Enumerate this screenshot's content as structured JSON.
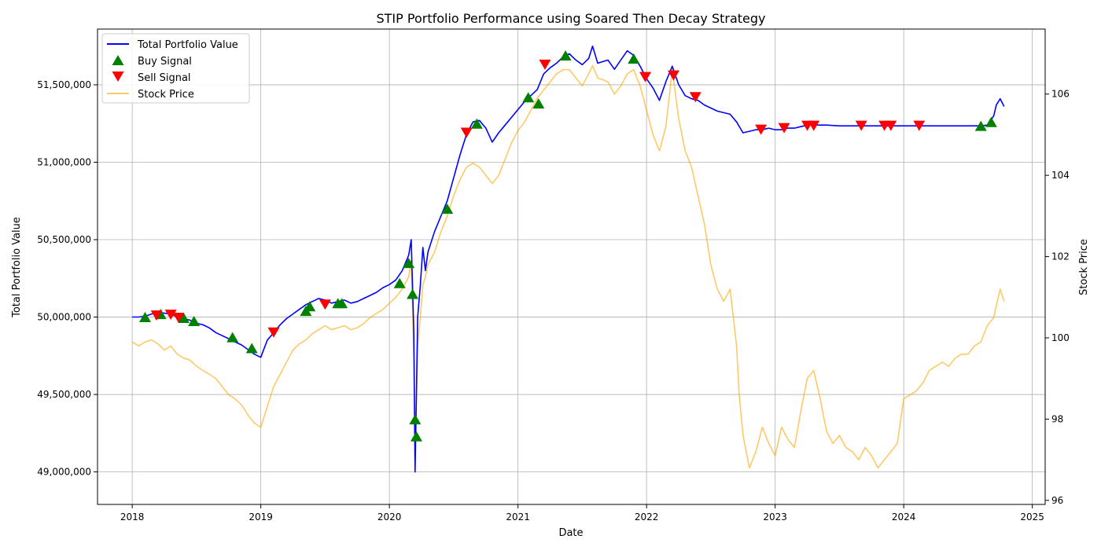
{
  "chart_data": {
    "type": "line",
    "title": "STIP Portfolio Performance using Soared Then Decay Strategy",
    "xlabel": "Date",
    "ylabel_left": "Total Portfolio Value",
    "ylabel_right": "Stock Price",
    "xlim": [
      2017.73,
      2025.1
    ],
    "ylim_left": [
      48790000,
      51860000
    ],
    "ylim_right": [
      95.9,
      107.6
    ],
    "x_ticks": [
      {
        "value": 2018,
        "label": "2018"
      },
      {
        "value": 2019,
        "label": "2019"
      },
      {
        "value": 2020,
        "label": "2020"
      },
      {
        "value": 2021,
        "label": "2021"
      },
      {
        "value": 2022,
        "label": "2022"
      },
      {
        "value": 2023,
        "label": "2023"
      },
      {
        "value": 2024,
        "label": "2024"
      },
      {
        "value": 2025,
        "label": "2025"
      }
    ],
    "y_ticks_left": [
      {
        "value": 49000000,
        "label": "49,000,000"
      },
      {
        "value": 49500000,
        "label": "49,500,000"
      },
      {
        "value": 50000000,
        "label": "50,000,000"
      },
      {
        "value": 50500000,
        "label": "50,500,000"
      },
      {
        "value": 51000000,
        "label": "51,000,000"
      },
      {
        "value": 51500000,
        "label": "51,500,000"
      }
    ],
    "y_ticks_right": [
      {
        "value": 96,
        "label": "96"
      },
      {
        "value": 98,
        "label": "98"
      },
      {
        "value": 100,
        "label": "100"
      },
      {
        "value": 102,
        "label": "102"
      },
      {
        "value": 104,
        "label": "104"
      },
      {
        "value": 106,
        "label": "106"
      }
    ],
    "grid": true,
    "legend_position": "top-left",
    "colors": {
      "portfolio": "#0000ff",
      "buy": "#008000",
      "sell": "#ff0000",
      "price": "#ffa500"
    },
    "legend": [
      {
        "label": "Total Portfolio Value",
        "kind": "line",
        "color": "#0000ff"
      },
      {
        "label": "Buy Signal",
        "kind": "triangle-up",
        "color": "#008000"
      },
      {
        "label": "Sell Signal",
        "kind": "triangle-down",
        "color": "#ff0000"
      },
      {
        "label": "Stock Price",
        "kind": "line",
        "color": "#ffa500"
      }
    ],
    "series": [
      {
        "name": "Total Portfolio Value",
        "axis": "left",
        "x": [
          2018.0,
          2018.05,
          2018.1,
          2018.15,
          2018.2,
          2018.25,
          2018.3,
          2018.35,
          2018.4,
          2018.45,
          2018.5,
          2018.55,
          2018.6,
          2018.65,
          2018.7,
          2018.75,
          2018.8,
          2018.85,
          2018.9,
          2018.95,
          2019.0,
          2019.05,
          2019.1,
          2019.15,
          2019.2,
          2019.25,
          2019.3,
          2019.35,
          2019.4,
          2019.45,
          2019.5,
          2019.55,
          2019.6,
          2019.65,
          2019.7,
          2019.75,
          2019.8,
          2019.85,
          2019.9,
          2019.95,
          2020.0,
          2020.05,
          2020.1,
          2020.15,
          2020.17,
          2020.19,
          2020.2,
          2020.21,
          2020.22,
          2020.24,
          2020.26,
          2020.28,
          2020.3,
          2020.35,
          2020.4,
          2020.45,
          2020.5,
          2020.55,
          2020.6,
          2020.65,
          2020.7,
          2020.75,
          2020.8,
          2020.85,
          2020.9,
          2020.95,
          2021.0,
          2021.05,
          2021.1,
          2021.15,
          2021.2,
          2021.25,
          2021.3,
          2021.35,
          2021.4,
          2021.45,
          2021.5,
          2021.55,
          2021.58,
          2021.62,
          2021.7,
          2021.75,
          2021.8,
          2021.85,
          2021.9,
          2021.95,
          2022.0,
          2022.05,
          2022.1,
          2022.15,
          2022.2,
          2022.25,
          2022.3,
          2022.35,
          2022.4,
          2022.45,
          2022.5,
          2022.55,
          2022.6,
          2022.65,
          2022.7,
          2022.75,
          2022.8,
          2022.85,
          2022.9,
          2022.95,
          2023.0,
          2023.05,
          2023.1,
          2023.15,
          2023.2,
          2023.25,
          2023.3,
          2023.4,
          2023.5,
          2023.6,
          2023.7,
          2023.8,
          2023.9,
          2024.0,
          2024.1,
          2024.2,
          2024.3,
          2024.4,
          2024.5,
          2024.6,
          2024.65,
          2024.7,
          2024.72,
          2024.75,
          2024.78
        ],
        "y": [
          50000000,
          50000000,
          50005000,
          50020000,
          50030000,
          50025000,
          50020000,
          50000000,
          49990000,
          49980000,
          49960000,
          49950000,
          49930000,
          49900000,
          49880000,
          49860000,
          49840000,
          49820000,
          49790000,
          49760000,
          49740000,
          49850000,
          49900000,
          49950000,
          49990000,
          50020000,
          50050000,
          50080000,
          50100000,
          50120000,
          50110000,
          50090000,
          50100000,
          50110000,
          50090000,
          50100000,
          50120000,
          50140000,
          50160000,
          50190000,
          50210000,
          50240000,
          50300000,
          50400000,
          50500000,
          49900000,
          49000000,
          49500000,
          50000000,
          50200000,
          50450000,
          50300000,
          50420000,
          50550000,
          50650000,
          50750000,
          50900000,
          51050000,
          51180000,
          51260000,
          51270000,
          51220000,
          51130000,
          51190000,
          51240000,
          51290000,
          51340000,
          51390000,
          51430000,
          51470000,
          51570000,
          51610000,
          51640000,
          51680000,
          51700000,
          51660000,
          51630000,
          51670000,
          51750000,
          51640000,
          51660000,
          51600000,
          51660000,
          51720000,
          51690000,
          51620000,
          51540000,
          51480000,
          51400000,
          51520000,
          51620000,
          51500000,
          51430000,
          51410000,
          51400000,
          51370000,
          51350000,
          51330000,
          51320000,
          51310000,
          51260000,
          51190000,
          51200000,
          51210000,
          51210000,
          51220000,
          51210000,
          51210000,
          51220000,
          51220000,
          51230000,
          51240000,
          51240000,
          51240000,
          51235000,
          51235000,
          51235000,
          51235000,
          51235000,
          51235000,
          51235000,
          51235000,
          51235000,
          51235000,
          51235000,
          51235000,
          51240000,
          51300000,
          51370000,
          51410000,
          51360000
        ]
      },
      {
        "name": "Stock Price",
        "axis": "right",
        "x": [
          2018.0,
          2018.05,
          2018.1,
          2018.15,
          2018.2,
          2018.25,
          2018.3,
          2018.35,
          2018.4,
          2018.45,
          2018.5,
          2018.55,
          2018.6,
          2018.65,
          2018.7,
          2018.75,
          2018.8,
          2018.85,
          2018.9,
          2018.95,
          2019.0,
          2019.05,
          2019.1,
          2019.15,
          2019.2,
          2019.25,
          2019.3,
          2019.35,
          2019.4,
          2019.45,
          2019.5,
          2019.55,
          2019.6,
          2019.65,
          2019.7,
          2019.75,
          2019.8,
          2019.85,
          2019.9,
          2019.95,
          2020.0,
          2020.05,
          2020.1,
          2020.15,
          2020.17,
          2020.19,
          2020.2,
          2020.21,
          2020.22,
          2020.24,
          2020.26,
          2020.28,
          2020.3,
          2020.35,
          2020.4,
          2020.45,
          2020.5,
          2020.55,
          2020.6,
          2020.65,
          2020.7,
          2020.75,
          2020.8,
          2020.85,
          2020.9,
          2020.95,
          2021.0,
          2021.05,
          2021.1,
          2021.15,
          2021.2,
          2021.25,
          2021.3,
          2021.35,
          2021.4,
          2021.45,
          2021.5,
          2021.55,
          2021.58,
          2021.62,
          2021.7,
          2021.75,
          2021.8,
          2021.85,
          2021.9,
          2021.95,
          2022.0,
          2022.05,
          2022.1,
          2022.15,
          2022.2,
          2022.25,
          2022.3,
          2022.35,
          2022.4,
          2022.45,
          2022.5,
          2022.55,
          2022.6,
          2022.65,
          2022.7,
          2022.72,
          2022.75,
          2022.8,
          2022.85,
          2022.9,
          2022.95,
          2023.0,
          2023.05,
          2023.1,
          2023.15,
          2023.2,
          2023.25,
          2023.3,
          2023.35,
          2023.4,
          2023.45,
          2023.5,
          2023.55,
          2023.6,
          2023.65,
          2023.7,
          2023.75,
          2023.8,
          2023.85,
          2023.9,
          2023.95,
          2024.0,
          2024.05,
          2024.1,
          2024.15,
          2024.2,
          2024.25,
          2024.3,
          2024.35,
          2024.4,
          2024.45,
          2024.5,
          2024.55,
          2024.6,
          2024.65,
          2024.7,
          2024.72,
          2024.75,
          2024.78
        ],
        "y": [
          99.9,
          99.8,
          99.9,
          99.95,
          99.85,
          99.7,
          99.8,
          99.6,
          99.5,
          99.45,
          99.3,
          99.2,
          99.1,
          99.0,
          98.8,
          98.6,
          98.5,
          98.35,
          98.1,
          97.9,
          97.8,
          98.3,
          98.8,
          99.1,
          99.4,
          99.7,
          99.85,
          99.95,
          100.1,
          100.2,
          100.3,
          100.2,
          100.25,
          100.3,
          100.2,
          100.25,
          100.35,
          100.5,
          100.6,
          100.7,
          100.85,
          101.0,
          101.2,
          101.5,
          101.9,
          99.5,
          97.1,
          98.5,
          99.8,
          100.5,
          101.3,
          101.5,
          101.8,
          102.1,
          102.6,
          103.0,
          103.5,
          103.9,
          104.2,
          104.3,
          104.2,
          104.0,
          103.8,
          104.0,
          104.4,
          104.8,
          105.1,
          105.3,
          105.6,
          105.9,
          106.1,
          106.3,
          106.5,
          106.6,
          106.6,
          106.4,
          106.2,
          106.5,
          106.7,
          106.4,
          106.3,
          106.0,
          106.2,
          106.5,
          106.6,
          106.2,
          105.6,
          105.0,
          104.6,
          105.2,
          106.6,
          105.4,
          104.6,
          104.2,
          103.5,
          102.8,
          101.8,
          101.2,
          100.9,
          101.2,
          99.8,
          98.6,
          97.6,
          96.8,
          97.2,
          97.8,
          97.4,
          97.1,
          97.8,
          97.5,
          97.3,
          98.2,
          99.0,
          99.2,
          98.5,
          97.7,
          97.4,
          97.6,
          97.3,
          97.2,
          97.0,
          97.3,
          97.1,
          96.8,
          97.0,
          97.2,
          97.4,
          98.5,
          98.6,
          98.7,
          98.9,
          99.2,
          99.3,
          99.4,
          99.3,
          99.5,
          99.6,
          99.6,
          99.8,
          99.9,
          100.3,
          100.5,
          100.8,
          101.2,
          100.9
        ]
      }
    ],
    "buy_signals": [
      {
        "x": 2018.1,
        "y": 50000000
      },
      {
        "x": 2018.22,
        "y": 50020000
      },
      {
        "x": 2018.4,
        "y": 49995000
      },
      {
        "x": 2018.48,
        "y": 49975000
      },
      {
        "x": 2018.78,
        "y": 49870000
      },
      {
        "x": 2018.93,
        "y": 49800000
      },
      {
        "x": 2019.35,
        "y": 50040000
      },
      {
        "x": 2019.38,
        "y": 50070000
      },
      {
        "x": 2019.6,
        "y": 50090000
      },
      {
        "x": 2019.63,
        "y": 50090000
      },
      {
        "x": 2020.08,
        "y": 50220000
      },
      {
        "x": 2020.15,
        "y": 50350000
      },
      {
        "x": 2020.18,
        "y": 50150000
      },
      {
        "x": 2020.2,
        "y": 49340000
      },
      {
        "x": 2020.21,
        "y": 49230000
      },
      {
        "x": 2020.45,
        "y": 50700000
      },
      {
        "x": 2020.68,
        "y": 51250000
      },
      {
        "x": 2021.08,
        "y": 51420000
      },
      {
        "x": 2021.16,
        "y": 51380000
      },
      {
        "x": 2021.37,
        "y": 51690000
      },
      {
        "x": 2021.9,
        "y": 51670000
      },
      {
        "x": 2024.6,
        "y": 51235000
      },
      {
        "x": 2024.68,
        "y": 51260000
      }
    ],
    "sell_signals": [
      {
        "x": 2018.19,
        "y": 50010000
      },
      {
        "x": 2018.3,
        "y": 50015000
      },
      {
        "x": 2018.36,
        "y": 49995000
      },
      {
        "x": 2019.1,
        "y": 49900000
      },
      {
        "x": 2019.5,
        "y": 50080000
      },
      {
        "x": 2020.6,
        "y": 51190000
      },
      {
        "x": 2021.21,
        "y": 51630000
      },
      {
        "x": 2021.99,
        "y": 51550000
      },
      {
        "x": 2022.21,
        "y": 51560000
      },
      {
        "x": 2022.38,
        "y": 51420000
      },
      {
        "x": 2022.89,
        "y": 51210000
      },
      {
        "x": 2023.07,
        "y": 51220000
      },
      {
        "x": 2023.25,
        "y": 51235000
      },
      {
        "x": 2023.3,
        "y": 51235000
      },
      {
        "x": 2023.67,
        "y": 51235000
      },
      {
        "x": 2023.85,
        "y": 51235000
      },
      {
        "x": 2023.9,
        "y": 51235000
      },
      {
        "x": 2024.12,
        "y": 51235000
      }
    ]
  }
}
